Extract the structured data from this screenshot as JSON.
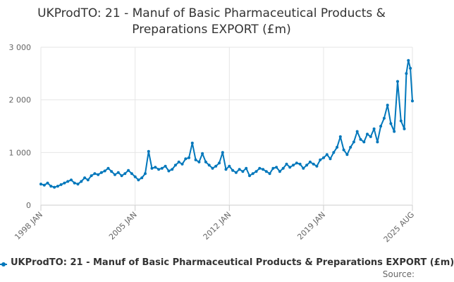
{
  "chart_data": {
    "type": "line",
    "title_lines": [
      "UKProdTO: 21 - Manuf of Basic Pharmaceutical Products &",
      "Preparations EXPORT (£m)"
    ],
    "x_tick_labels": [
      "1998 JAN",
      "2005 JAN",
      "2012 JAN",
      "2019 JAN",
      "2025 AUG"
    ],
    "y_tick_labels": [
      "0",
      "1 000",
      "2 000",
      "3 000"
    ],
    "y_ticks": [
      0,
      1000,
      2000,
      3000
    ],
    "ylim": [
      0,
      3000
    ],
    "x_range": [
      1998.0,
      2025.6
    ],
    "grid": true,
    "color": "#0077bb",
    "legend_label": "UKProdTO: 21 - Manuf of Basic Pharmaceutical Products & Preparations EXPORT (£m)",
    "source_label": "Source:",
    "series": [
      {
        "name": "UKProdTO: 21 - Manuf of Basic Pharmaceutical Products & Preparations EXPORT (£m)",
        "x": [
          1998.0,
          1998.25,
          1998.5,
          1998.75,
          1999.0,
          1999.25,
          1999.5,
          1999.75,
          2000.0,
          2000.25,
          2000.5,
          2000.75,
          2001.0,
          2001.25,
          2001.5,
          2001.75,
          2002.0,
          2002.25,
          2002.5,
          2002.75,
          2003.0,
          2003.25,
          2003.5,
          2003.75,
          2004.0,
          2004.25,
          2004.5,
          2004.75,
          2005.0,
          2005.25,
          2005.5,
          2005.75,
          2006.0,
          2006.25,
          2006.5,
          2006.75,
          2007.0,
          2007.25,
          2007.5,
          2007.75,
          2008.0,
          2008.25,
          2008.5,
          2008.75,
          2009.0,
          2009.25,
          2009.5,
          2009.75,
          2010.0,
          2010.25,
          2010.5,
          2010.75,
          2011.0,
          2011.25,
          2011.5,
          2011.75,
          2012.0,
          2012.25,
          2012.5,
          2012.75,
          2013.0,
          2013.25,
          2013.5,
          2013.75,
          2014.0,
          2014.25,
          2014.5,
          2014.75,
          2015.0,
          2015.25,
          2015.5,
          2015.75,
          2016.0,
          2016.25,
          2016.5,
          2016.75,
          2017.0,
          2017.25,
          2017.5,
          2017.75,
          2018.0,
          2018.25,
          2018.5,
          2018.75,
          2019.0,
          2019.25,
          2019.5,
          2019.75,
          2020.0,
          2020.25,
          2020.5,
          2020.75,
          2021.0,
          2021.25,
          2021.5,
          2021.75,
          2022.0,
          2022.25,
          2022.5,
          2022.75,
          2023.0,
          2023.25,
          2023.5,
          2023.75,
          2024.0,
          2024.25,
          2024.5,
          2024.75,
          2025.0,
          2025.15,
          2025.3,
          2025.45,
          2025.6
        ],
        "values": [
          400,
          380,
          420,
          360,
          340,
          360,
          390,
          420,
          450,
          480,
          420,
          400,
          450,
          520,
          480,
          560,
          600,
          580,
          620,
          650,
          700,
          640,
          580,
          620,
          560,
          600,
          660,
          600,
          540,
          480,
          520,
          600,
          1020,
          700,
          720,
          680,
          700,
          740,
          650,
          680,
          760,
          820,
          780,
          880,
          900,
          1180,
          860,
          820,
          980,
          820,
          760,
          700,
          740,
          800,
          1000,
          680,
          740,
          660,
          620,
          680,
          640,
          700,
          560,
          600,
          640,
          700,
          680,
          640,
          600,
          700,
          720,
          640,
          700,
          780,
          720,
          760,
          800,
          780,
          700,
          760,
          820,
          780,
          740,
          860,
          900,
          960,
          880,
          1000,
          1100,
          1300,
          1050,
          960,
          1100,
          1200,
          1400,
          1250,
          1200,
          1350,
          1300,
          1450,
          1200,
          1500,
          1650,
          1900,
          1550,
          1400,
          2350,
          1600,
          1450,
          2500,
          2750,
          2600,
          1980
        ]
      }
    ]
  }
}
